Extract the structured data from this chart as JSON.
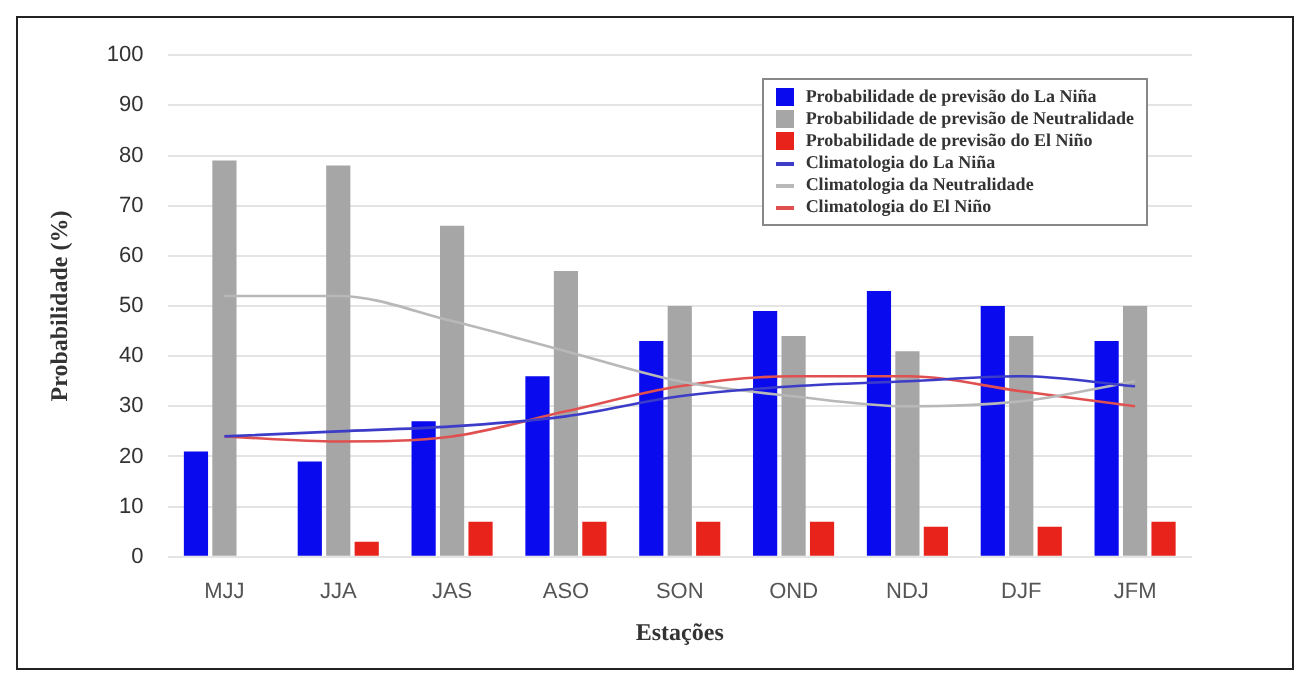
{
  "chart_data": {
    "type": "bar",
    "ylabel": "Probabilidade (%)",
    "xlabel": "Estações",
    "categories": [
      "MJJ",
      "JJA",
      "JAS",
      "ASO",
      "SON",
      "OND",
      "NDJ",
      "DJF",
      "JFM"
    ],
    "series": [
      {
        "name": "Probabilidade de previsão do La Niña",
        "color": "#0a0aee",
        "values": [
          21,
          19,
          27,
          36,
          43,
          49,
          53,
          50,
          43
        ]
      },
      {
        "name": "Probabilidade de previsão de Neutralidade",
        "color": "#a6a6a6",
        "values": [
          79,
          78,
          66,
          57,
          50,
          44,
          41,
          44,
          50
        ]
      },
      {
        "name": "Probabilidade de previsão do El Niño",
        "color": "#e8231c",
        "values": [
          0,
          3,
          7,
          7,
          7,
          7,
          6,
          6,
          7
        ]
      },
      {
        "name": "Climatologia do La Niña",
        "type": "line",
        "color": "#3c3cc8",
        "values": [
          24,
          25,
          26,
          28,
          32,
          34,
          35,
          36,
          34
        ]
      },
      {
        "name": "Climatologia da Neutralidade",
        "type": "line",
        "color": "#b8b8b8",
        "values": [
          52,
          52,
          47,
          41,
          35,
          32,
          30,
          31,
          35
        ]
      },
      {
        "name": "Climatologia do El Niño",
        "type": "line",
        "color": "#e05050",
        "values": [
          24,
          23,
          24,
          29,
          34,
          36,
          36,
          33,
          30
        ]
      }
    ],
    "ylim": [
      0,
      100
    ],
    "yticks": [
      0,
      10,
      20,
      30,
      40,
      50,
      60,
      70,
      80,
      90,
      100
    ],
    "grid": "y",
    "legend": "top right",
    "marker": "none"
  }
}
